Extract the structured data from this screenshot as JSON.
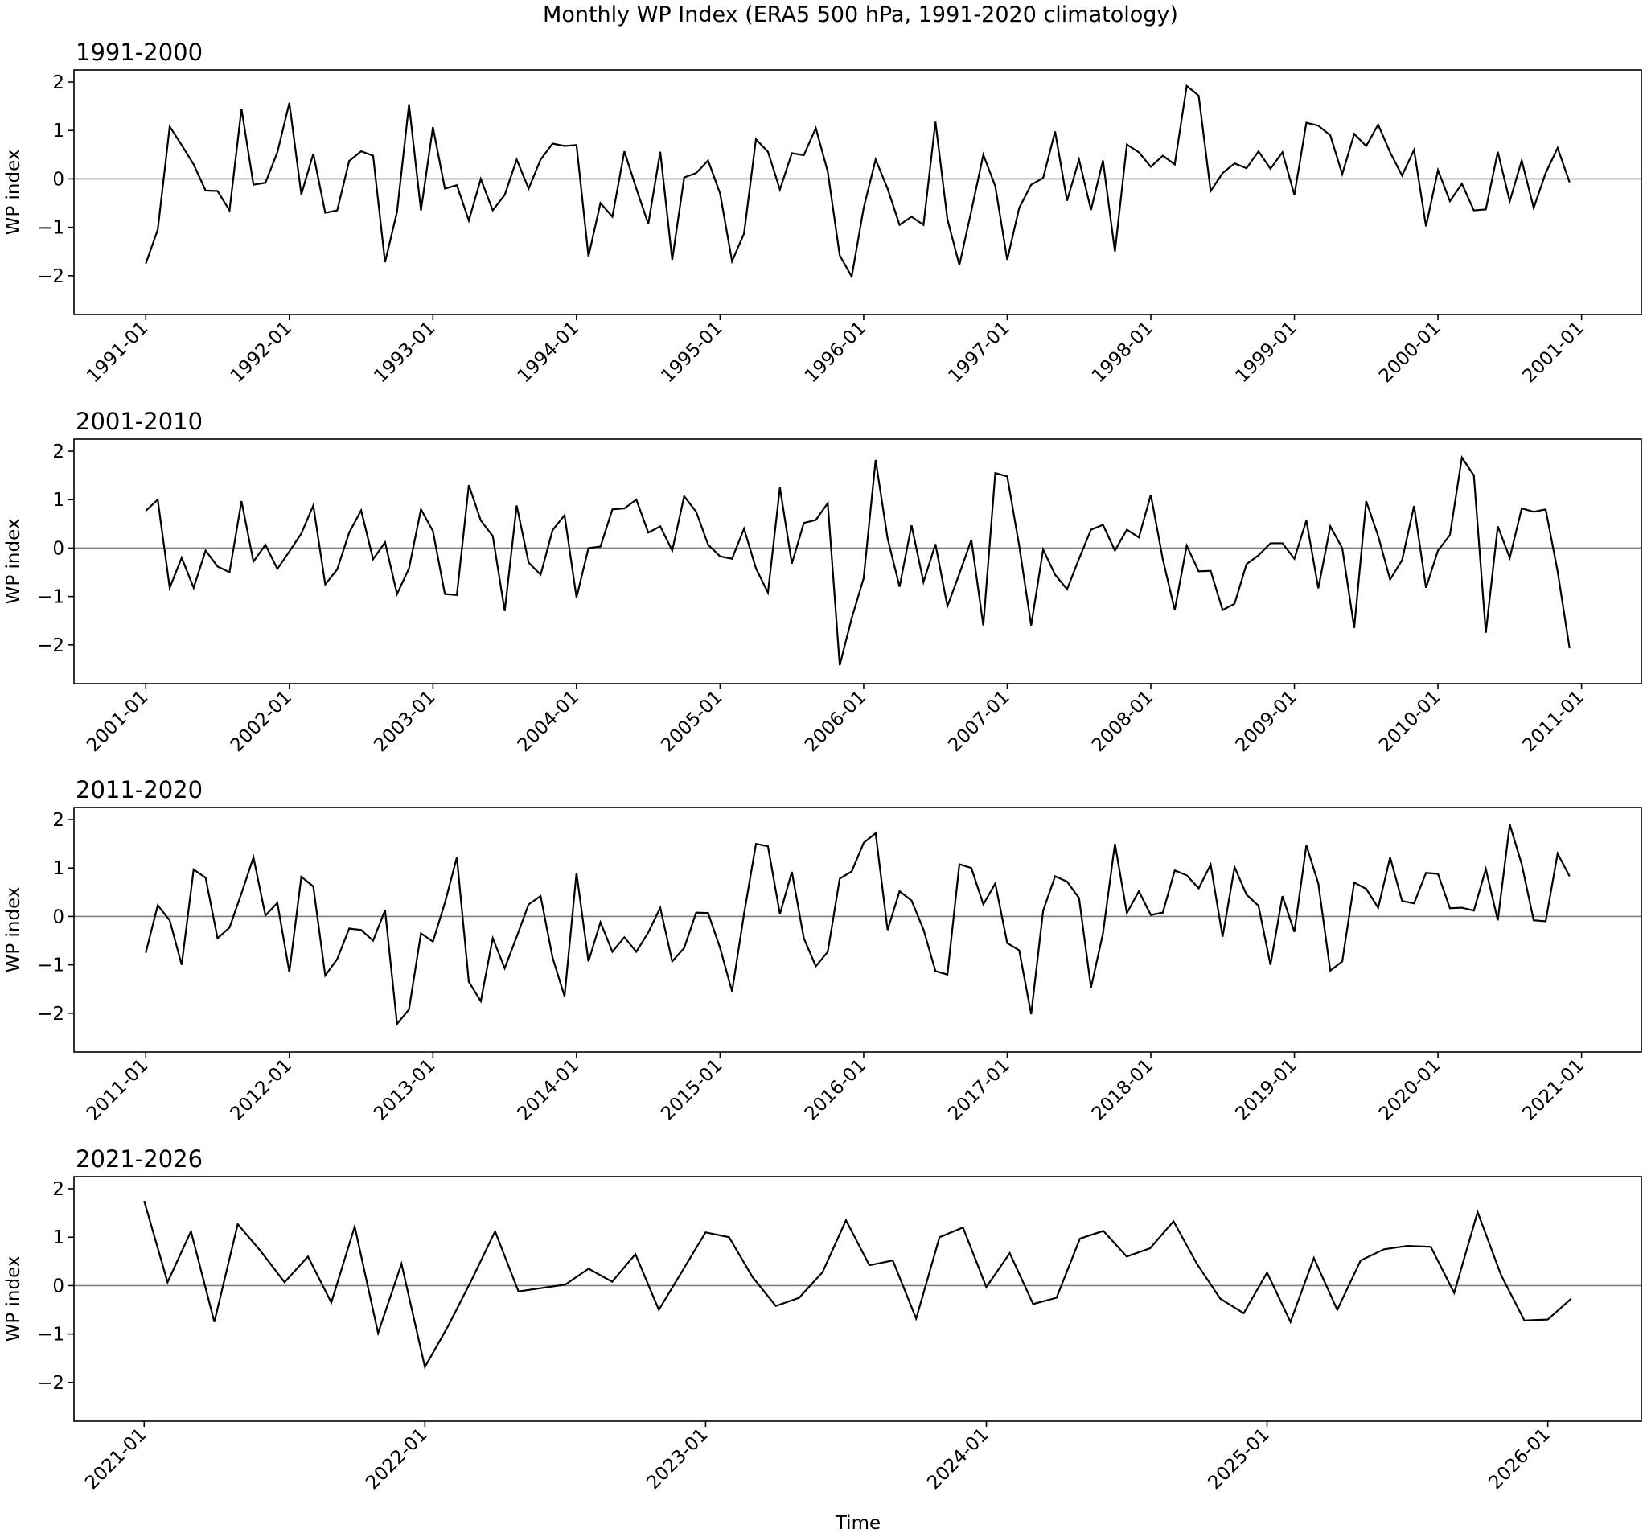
{
  "title": "Monthly WP Index (ERA5 500 hPa, 1991-2020 climatology)",
  "xlabel": "Time",
  "chart_data": [
    {
      "type": "line",
      "title": "1991-2000",
      "ylabel": "WP index",
      "ylim": [
        -2.8,
        2.25
      ],
      "yticks": [
        2,
        1,
        0,
        -1,
        -2
      ],
      "ytick_labels": [
        "2",
        "1",
        "0",
        "−1",
        "−2"
      ],
      "reference_line": 0,
      "series_color": "#000000",
      "reference_color": "#808080",
      "xlim": [
        "1990-07",
        "2001-06"
      ],
      "xtick_labels": [
        "1991-01",
        "1992-01",
        "1993-01",
        "1994-01",
        "1995-01",
        "1996-01",
        "1997-01",
        "1998-01",
        "1999-01",
        "2000-01",
        "2001-01"
      ],
      "start": "1991-01",
      "values": [
        -1.75,
        -1.05,
        1.08,
        0.7,
        0.3,
        -0.24,
        -0.25,
        -0.65,
        1.45,
        -0.12,
        -0.08,
        0.55,
        1.57,
        -0.32,
        0.52,
        -0.7,
        -0.65,
        0.37,
        0.57,
        0.48,
        -1.72,
        -0.68,
        1.54,
        -0.65,
        1.07,
        -0.2,
        -0.13,
        -0.86,
        0.0,
        -0.65,
        -0.33,
        0.4,
        -0.2,
        0.4,
        0.73,
        0.68,
        0.7,
        -1.6,
        -0.5,
        -0.78,
        0.57,
        -0.2,
        -0.93,
        0.56,
        -1.67,
        0.03,
        0.12,
        0.38,
        -0.3,
        -1.7,
        -1.13,
        0.82,
        0.56,
        -0.22,
        0.53,
        0.49,
        1.05,
        0.15,
        -1.58,
        -2.02,
        -0.6,
        0.4,
        -0.2,
        -0.95,
        -0.78,
        -0.95,
        1.18,
        -0.83,
        -1.78,
        -0.66,
        0.5,
        -0.15,
        -1.67,
        -0.6,
        -0.12,
        0.02,
        0.98,
        -0.45,
        0.4,
        -0.64,
        0.38,
        -1.5,
        0.71,
        0.55,
        0.25,
        0.48,
        0.3,
        1.92,
        1.72,
        -0.25,
        0.12,
        0.32,
        0.22,
        0.57,
        0.21,
        0.55,
        -0.33,
        1.16,
        1.1,
        0.9,
        0.1,
        0.93,
        0.68,
        1.12,
        0.55,
        0.07,
        0.6,
        -0.98,
        0.18,
        -0.46,
        -0.1,
        -0.65,
        -0.63,
        0.56,
        -0.46,
        0.38,
        -0.6,
        0.12,
        0.64,
        -0.07
      ]
    },
    {
      "type": "line",
      "title": "2001-2010",
      "ylabel": "WP index",
      "ylim": [
        -2.8,
        2.25
      ],
      "yticks": [
        2,
        1,
        0,
        -1,
        -2
      ],
      "ytick_labels": [
        "2",
        "1",
        "0",
        "−1",
        "−2"
      ],
      "reference_line": 0,
      "series_color": "#000000",
      "reference_color": "#808080",
      "xlim": [
        "2000-07",
        "2011-06"
      ],
      "xtick_labels": [
        "2001-01",
        "2002-01",
        "2003-01",
        "2004-01",
        "2005-01",
        "2006-01",
        "2007-01",
        "2008-01",
        "2009-01",
        "2010-01",
        "2011-01"
      ],
      "start": "2001-01",
      "values": [
        0.77,
        1.0,
        -0.82,
        -0.2,
        -0.82,
        -0.05,
        -0.38,
        -0.5,
        0.97,
        -0.28,
        0.07,
        -0.43,
        -0.07,
        0.3,
        0.88,
        -0.75,
        -0.44,
        0.32,
        0.78,
        -0.23,
        0.12,
        -0.95,
        -0.42,
        0.8,
        0.35,
        -0.95,
        -0.97,
        1.3,
        0.57,
        0.25,
        -1.3,
        0.88,
        -0.3,
        -0.55,
        0.37,
        0.68,
        -1.02,
        0.0,
        0.03,
        0.8,
        0.82,
        1.0,
        0.32,
        0.45,
        -0.05,
        1.07,
        0.75,
        0.07,
        -0.17,
        -0.22,
        0.4,
        -0.42,
        -0.92,
        1.25,
        -0.32,
        0.52,
        0.58,
        0.93,
        -2.42,
        -1.45,
        -0.62,
        1.82,
        0.2,
        -0.8,
        0.47,
        -0.7,
        0.08,
        -1.2,
        -0.53,
        0.17,
        -1.6,
        1.55,
        1.48,
        0.05,
        -1.6,
        -0.03,
        -0.55,
        -0.85,
        -0.22,
        0.38,
        0.48,
        -0.05,
        0.38,
        0.22,
        1.1,
        -0.23,
        -1.28,
        0.05,
        -0.48,
        -0.47,
        -1.28,
        -1.15,
        -0.33,
        -0.15,
        0.1,
        0.1,
        -0.22,
        0.57,
        -0.83,
        0.45,
        0.0,
        -1.65,
        0.97,
        0.25,
        -0.65,
        -0.25,
        0.87,
        -0.82,
        -0.05,
        0.27,
        1.87,
        1.5,
        -1.75,
        0.45,
        -0.2,
        0.82,
        0.75,
        0.8,
        -0.48,
        -2.07
      ]
    },
    {
      "type": "line",
      "title": "2011-2020",
      "ylabel": "WP index",
      "ylim": [
        -2.8,
        2.25
      ],
      "yticks": [
        2,
        1,
        0,
        -1,
        -2
      ],
      "ytick_labels": [
        "2",
        "1",
        "0",
        "−1",
        "−2"
      ],
      "reference_line": 0,
      "series_color": "#000000",
      "reference_color": "#808080",
      "xlim": [
        "2010-07",
        "2021-06"
      ],
      "xtick_labels": [
        "2011-01",
        "2012-01",
        "2013-01",
        "2014-01",
        "2015-01",
        "2016-01",
        "2017-01",
        "2018-01",
        "2019-01",
        "2020-01",
        "2021-01"
      ],
      "start": "2011-01",
      "values": [
        -0.75,
        0.23,
        -0.08,
        -1.0,
        0.97,
        0.8,
        -0.45,
        -0.23,
        0.48,
        1.22,
        0.02,
        0.28,
        -1.15,
        0.82,
        0.62,
        -1.22,
        -0.88,
        -0.25,
        -0.28,
        -0.5,
        0.13,
        -2.22,
        -1.92,
        -0.35,
        -0.52,
        0.28,
        1.22,
        -1.35,
        -1.75,
        -0.45,
        -1.07,
        -0.42,
        0.25,
        0.42,
        -0.85,
        -1.65,
        0.9,
        -0.93,
        -0.12,
        -0.73,
        -0.43,
        -0.73,
        -0.33,
        0.18,
        -0.93,
        -0.65,
        0.08,
        0.07,
        -0.65,
        -1.55,
        0.05,
        1.5,
        1.45,
        0.05,
        0.92,
        -0.45,
        -1.03,
        -0.73,
        0.78,
        0.93,
        1.52,
        1.72,
        -0.28,
        0.52,
        0.33,
        -0.27,
        -1.13,
        -1.2,
        1.08,
        1.0,
        0.25,
        0.68,
        -0.55,
        -0.7,
        -2.02,
        0.12,
        0.83,
        0.72,
        0.38,
        -1.47,
        -0.35,
        1.5,
        0.07,
        0.52,
        0.03,
        0.08,
        0.95,
        0.85,
        0.58,
        1.07,
        -0.42,
        1.02,
        0.45,
        0.22,
        -1.0,
        0.42,
        -0.32,
        1.47,
        0.68,
        -1.12,
        -0.93,
        0.7,
        0.57,
        0.18,
        1.22,
        0.32,
        0.27,
        0.9,
        0.88,
        0.17,
        0.18,
        0.12,
        0.98,
        -0.08,
        1.9,
        1.08,
        -0.08,
        -0.1,
        1.3,
        0.83
      ]
    },
    {
      "type": "line",
      "title": "2021-2026",
      "ylabel": "WP index",
      "ylim": [
        -2.8,
        2.25
      ],
      "yticks": [
        2,
        1,
        0,
        -1,
        -2
      ],
      "ytick_labels": [
        "2",
        "1",
        "0",
        "−1",
        "−2"
      ],
      "reference_line": 0,
      "series_color": "#000000",
      "reference_color": "#808080",
      "xlim": [
        "2020-10",
        "2026-05"
      ],
      "xtick_labels": [
        "2021-01",
        "2022-01",
        "2023-01",
        "2024-01",
        "2025-01",
        "2026-01"
      ],
      "start": "2021-01",
      "values": [
        1.75,
        0.07,
        1.12,
        -0.75,
        1.27,
        0.7,
        0.07,
        0.6,
        -0.35,
        1.22,
        -0.98,
        0.45,
        -1.68,
        -0.83,
        0.12,
        1.12,
        -0.12,
        -0.05,
        0.02,
        0.35,
        0.08,
        0.65,
        -0.5,
        0.3,
        1.1,
        1.0,
        0.18,
        -0.42,
        -0.25,
        0.28,
        1.35,
        0.42,
        0.52,
        -0.68,
        1.0,
        1.2,
        -0.03,
        0.67,
        -0.38,
        -0.25,
        0.97,
        1.13,
        0.6,
        0.77,
        1.33,
        0.45,
        -0.27,
        -0.57,
        0.27,
        -0.75,
        0.57,
        -0.5,
        0.52,
        0.75,
        0.82,
        0.8,
        -0.15,
        1.52,
        0.22,
        -0.72,
        -0.7,
        -0.27
      ]
    }
  ]
}
